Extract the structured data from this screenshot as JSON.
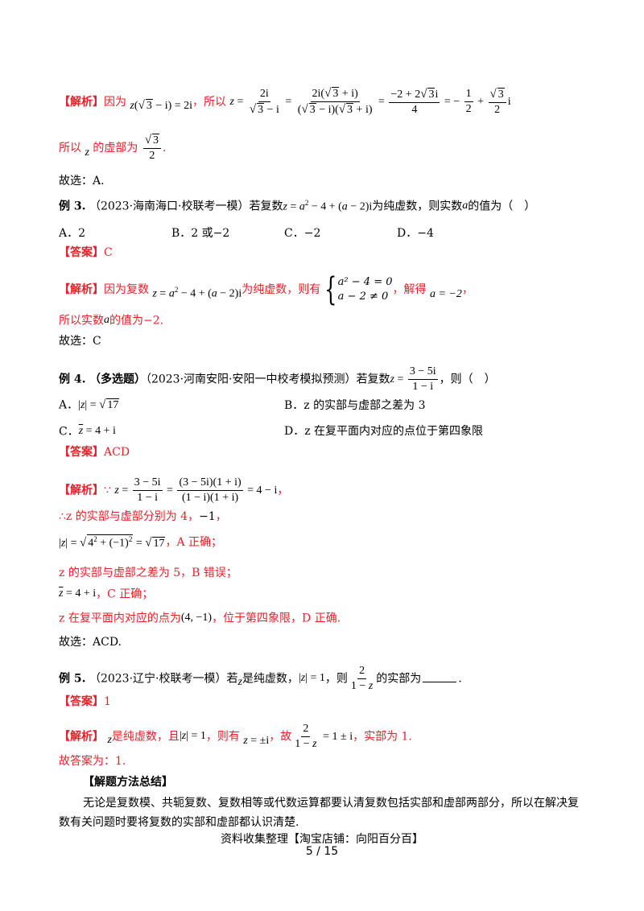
{
  "ex2_solution": {
    "tag": "【解析】",
    "text1": "因为",
    "text2": "，所以",
    "eq_z_sqrt3_i": "z(√3 − i) = 2i",
    "line2": "所以",
    "line2b": "的虚部为",
    "sqrt3_over_2": "√3 / 2",
    "choose": "故选：A."
  },
  "ex3": {
    "label": "例 3.",
    "source": "（2023·海南海口·校联考一模）若复数",
    "cond": "为纯虚数，则实数",
    "tail": "的值为（　）",
    "options": [
      "A．2",
      "B．2 或",
      "C．",
      "D．"
    ],
    "opt_vals": [
      "−2",
      "−2",
      "−4"
    ],
    "answer_tag": "【答案】",
    "answer": "C",
    "solution_tag": "【解析】",
    "sol_a": "因为复数",
    "sol_b": "为纯虚数，则有",
    "sol_c": "，解得",
    "sys1": "a² − 4 = 0",
    "sys2": "a − 2 ≠ 0",
    "result": "a = −2",
    "line2": "所以实数",
    "line2b": "的值为",
    "line2c": "−2",
    "choose": "故选：C"
  },
  "ex4": {
    "label": "例 4.",
    "type": "（多选题）",
    "source": "（2023·河南安阳·安阳一中校考模拟预测）若复数",
    "tail": "，则（　）",
    "optA": "A．",
    "optB": "B．z 的实部与虚部之差为 3",
    "optC": "C．",
    "optD": "D．z 在复平面内对应的点位于第四象限",
    "answer_tag": "【答案】",
    "answer": "ACD",
    "solution_tag": "【解析】",
    "because": "∵",
    "l2": "∴z 的实部与虚部分别为 4，",
    "l2b": "−1",
    "l3tail": "，A 正确；",
    "l4": "z 的实部与虚部之差为 5，B 错误；",
    "l5tail": "，C 正确；",
    "l6a": "z 在复平面内对应的点为",
    "l6b": "，位于第四象限，D 正确.",
    "choose": "故选：ACD."
  },
  "ex5": {
    "label": "例 5.",
    "source": "（2023·辽宁·校联考一模）若",
    "cond": "是纯虚数，",
    "cond2": "，则",
    "tail": "的实部为",
    "answer_tag": "【答案】",
    "answer": "1",
    "solution_tag": "【解析】",
    "s1": "是纯虚数，且",
    "s2": "，则有",
    "s3": "，故",
    "s4": "，实部为 1.",
    "final": "故答案为：1."
  },
  "summary": {
    "title": "【解题方法总结】",
    "body1": "无论是复数模、共轭复数、复数相等或代数运算都要认清复数包括实部和虚部两部分，所以在解决复",
    "body2": "数有关问题时要将复数的实部和虚部都认识清楚."
  },
  "footer": {
    "note": "资料收集整理【淘宝店铺：向阳百分百】",
    "page": "5 / 15"
  }
}
